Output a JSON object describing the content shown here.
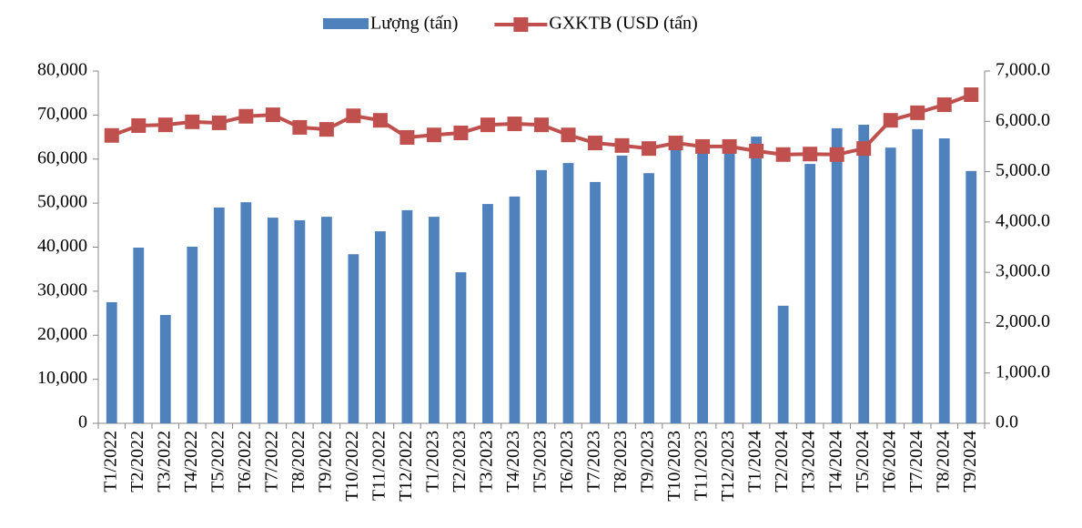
{
  "chart_data": {
    "type": "bar_line",
    "categories": [
      "T1/2022",
      "T2/2022",
      "T3/2022",
      "T4/2022",
      "T5/2022",
      "T6/2022",
      "T7/2022",
      "T8/2022",
      "T9/2022",
      "T10/2022",
      "T11/2022",
      "T12/2022",
      "T1/2023",
      "T2/2023",
      "T3/2023",
      "T4/2023",
      "T5/2023",
      "T6/2023",
      "T7/2023",
      "T8/2023",
      "T9/2023",
      "T10/2023",
      "T11/2023",
      "T12/2023",
      "T1/2024",
      "T2/2024",
      "T3/2024",
      "T4/2024",
      "T5/2024",
      "T6/2024",
      "T7/2024",
      "T8/2024",
      "T9/2024"
    ],
    "series": [
      {
        "name": "Lượng (tấn)",
        "color": "#4f81bd",
        "type": "bar",
        "values": [
          27500,
          39900,
          24600,
          40100,
          49000,
          50200,
          46700,
          46100,
          46900,
          38400,
          43600,
          48400,
          46900,
          34300,
          49800,
          51500,
          57500,
          59100,
          54800,
          60800,
          56800,
          63000,
          62000,
          62000,
          65100,
          26700,
          58900,
          67000,
          67800,
          62600,
          66800,
          64700,
          57300
        ]
      },
      {
        "name": "GXKTB (USD (tấn)",
        "color": "#c0504d",
        "type": "line",
        "axis": "y2",
        "values": [
          5720,
          5915,
          5930,
          5990,
          5970,
          6100,
          6130,
          5880,
          5840,
          6110,
          6020,
          5680,
          5730,
          5770,
          5930,
          5950,
          5930,
          5730,
          5570,
          5520,
          5460,
          5570,
          5500,
          5500,
          5410,
          5340,
          5350,
          5340,
          5460,
          6020,
          6170,
          6330,
          6530
        ]
      }
    ],
    "ylim": [
      0,
      80000
    ],
    "yticks": [
      0,
      {
        "value": 10000,
        "label": "10,000"
      },
      {
        "value": 20000,
        "label": "20,000"
      },
      {
        "value": 30000,
        "label": "30,000"
      },
      {
        "value": 40000,
        "label": "40,000"
      },
      {
        "value": 50000,
        "label": "50,000"
      },
      {
        "value": 60000,
        "label": "60,000"
      },
      {
        "value": 70000,
        "label": "70,000"
      },
      {
        "value": 80000,
        "label": "80,000"
      }
    ],
    "y2lim": [
      0,
      7000
    ],
    "y2ticks": [
      {
        "value": 0,
        "label": "0.0"
      },
      {
        "value": 1000,
        "label": "1,000.0"
      },
      {
        "value": 2000,
        "label": "2,000.0"
      },
      {
        "value": 3000,
        "label": "3,000.0"
      },
      {
        "value": 4000,
        "label": "4,000.0"
      },
      {
        "value": 5000,
        "label": "5,000.0"
      },
      {
        "value": 6000,
        "label": "6,000.0"
      },
      {
        "value": 7000,
        "label": "7,000.0"
      }
    ],
    "legend": "top"
  }
}
